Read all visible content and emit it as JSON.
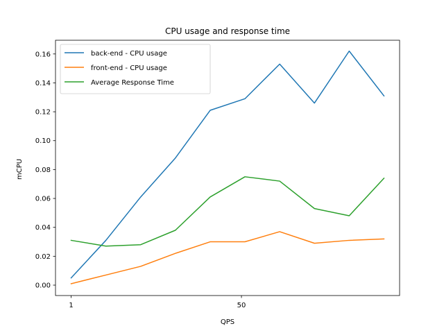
{
  "chart_data": {
    "type": "line",
    "title": "CPU usage and response time",
    "xlabel": "QPS",
    "ylabel": "mCPU",
    "x": [
      1,
      11,
      21,
      31,
      41,
      51,
      61,
      71,
      81,
      91
    ],
    "xticks": [
      1,
      50
    ],
    "xlim": [
      -3.5,
      95.5
    ],
    "ylim": [
      -0.0072,
      0.1695
    ],
    "yticks": [
      0.0,
      0.02,
      0.04,
      0.06,
      0.08,
      0.1,
      0.12,
      0.14,
      0.16
    ],
    "ytick_labels": [
      "0.00",
      "0.02",
      "0.04",
      "0.06",
      "0.08",
      "0.10",
      "0.12",
      "0.14",
      "0.16"
    ],
    "grid": false,
    "legend_position": "top-left",
    "series": [
      {
        "name": "back-end - CPU usage",
        "color": "#1f77b4",
        "values": [
          0.005,
          0.031,
          0.061,
          0.088,
          0.121,
          0.129,
          0.153,
          0.126,
          0.162,
          0.131
        ]
      },
      {
        "name": "front-end - CPU usage",
        "color": "#ff7f0e",
        "values": [
          0.001,
          0.007,
          0.013,
          0.022,
          0.03,
          0.03,
          0.037,
          0.029,
          0.031,
          0.032
        ]
      },
      {
        "name": "Average Response Time",
        "color": "#2ca02c",
        "values": [
          0.031,
          0.027,
          0.028,
          0.038,
          0.061,
          0.075,
          0.072,
          0.053,
          0.048,
          0.074
        ]
      }
    ]
  }
}
